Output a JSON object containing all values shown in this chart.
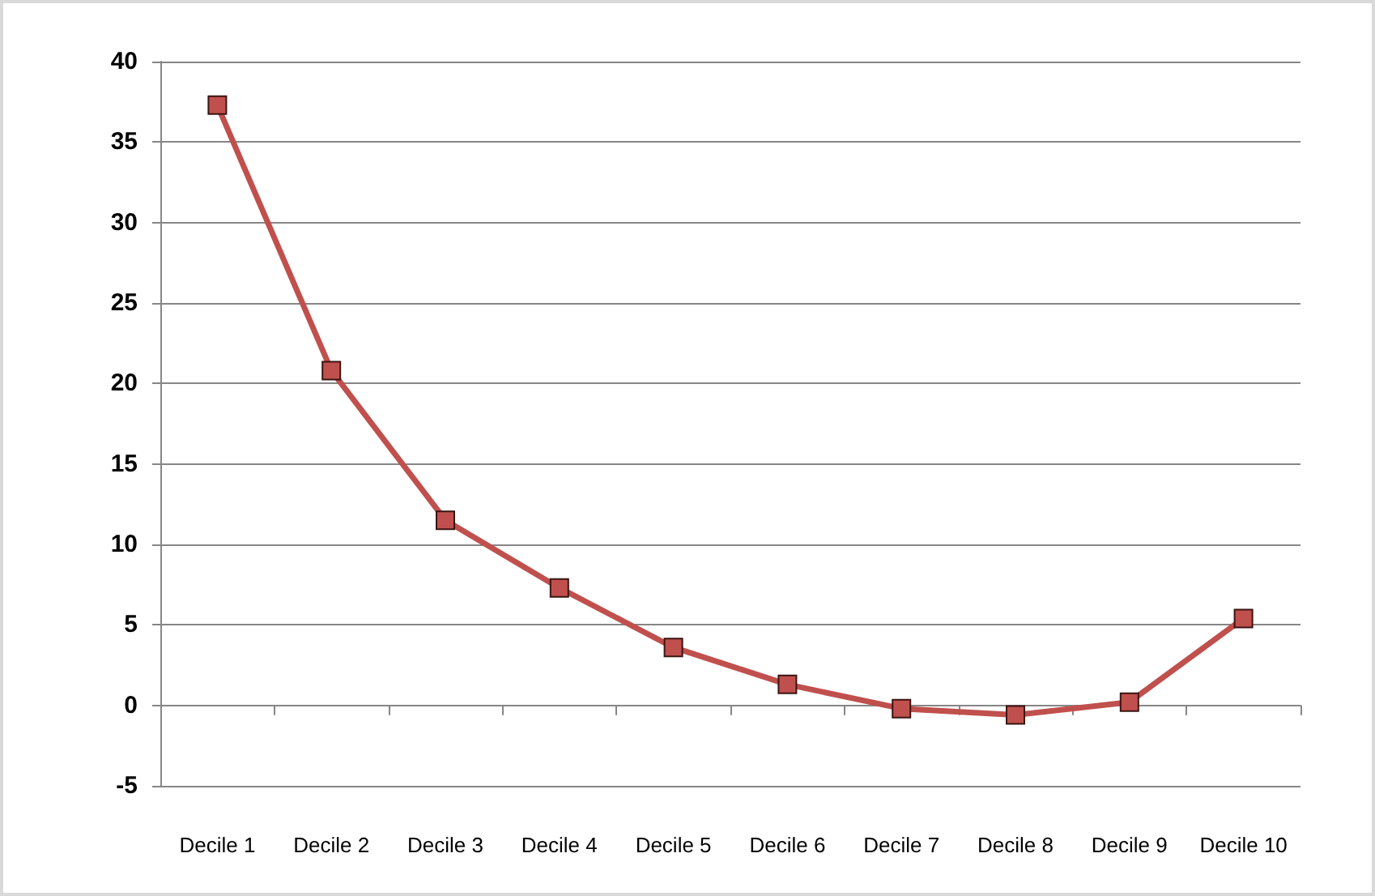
{
  "chart_data": {
    "type": "line",
    "categories": [
      "Decile 1",
      "Decile 2",
      "Decile 3",
      "Decile 4",
      "Decile 5",
      "Decile 6",
      "Decile 7",
      "Decile 8",
      "Decile 9",
      "Decile 10"
    ],
    "series": [
      {
        "color": "#c0504d",
        "values": [
          37.3,
          20.8,
          11.5,
          7.3,
          3.6,
          1.3,
          -0.2,
          -0.6,
          0.2,
          5.4
        ]
      }
    ],
    "ylim": [
      -5,
      40
    ],
    "yticks": [
      -5,
      0,
      5,
      10,
      15,
      20,
      25,
      30,
      35,
      40
    ],
    "grid": "y",
    "marker": "square",
    "line_style": "solid"
  }
}
